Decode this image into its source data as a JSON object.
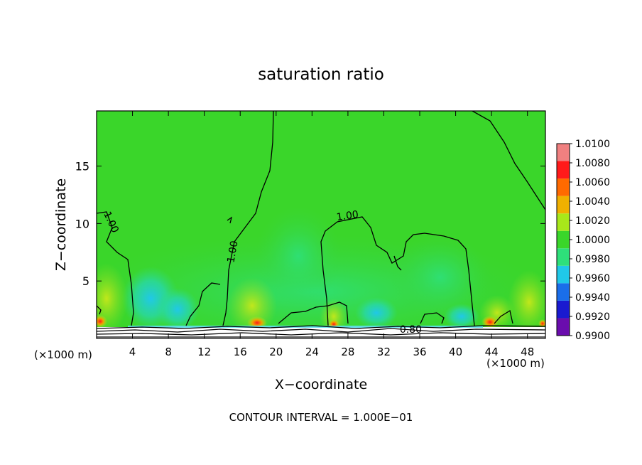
{
  "chart_data": {
    "type": "heatmap",
    "title": "saturation ratio",
    "xlabel": "X−coordinate",
    "ylabel": "Z−coordinate",
    "x_unit_left": "(×1000 m)",
    "x_unit_right": "(×1000 m)",
    "footer": "CONTOUR INTERVAL = 1.000E−01",
    "xlim": [
      0,
      50
    ],
    "ylim": [
      0,
      19.8
    ],
    "x_ticks": [
      4,
      8,
      12,
      16,
      20,
      24,
      28,
      32,
      36,
      40,
      44,
      48
    ],
    "x_tick_labels": [
      "4",
      "8",
      "12",
      "16",
      "20",
      "24",
      "28",
      "32",
      "36",
      "40",
      "44",
      "48"
    ],
    "y_ticks": [
      5,
      10,
      15
    ],
    "y_tick_labels": [
      "5",
      "10",
      "15"
    ],
    "colorbar": {
      "levels": [
        0.99,
        0.992,
        0.994,
        0.996,
        0.998,
        1.0,
        1.002,
        1.004,
        1.006,
        1.008,
        1.01
      ],
      "labels": [
        "0.9900",
        "0.9920",
        "0.9940",
        "0.9960",
        "0.9980",
        "1.0000",
        "1.0020",
        "1.0040",
        "1.0060",
        "1.0080",
        "1.0100"
      ],
      "colors": [
        "#6a0dad",
        "#1a1ad0",
        "#1a6eea",
        "#20c8e8",
        "#2ee07a",
        "#3ad62a",
        "#a8e81a",
        "#f0b000",
        "#ff6a00",
        "#ff1a1a",
        "#f08080"
      ]
    },
    "contour_labels": [
      {
        "text": "1.00",
        "x": 1.3,
        "z": 10.0
      },
      {
        "text": "1.00",
        "x": 15.5,
        "z": 7.5
      },
      {
        "text": "1.00",
        "x": 28.0,
        "z": 10.4
      },
      {
        "text": "0.80",
        "x": 35.0,
        "z": 0.5
      }
    ]
  }
}
